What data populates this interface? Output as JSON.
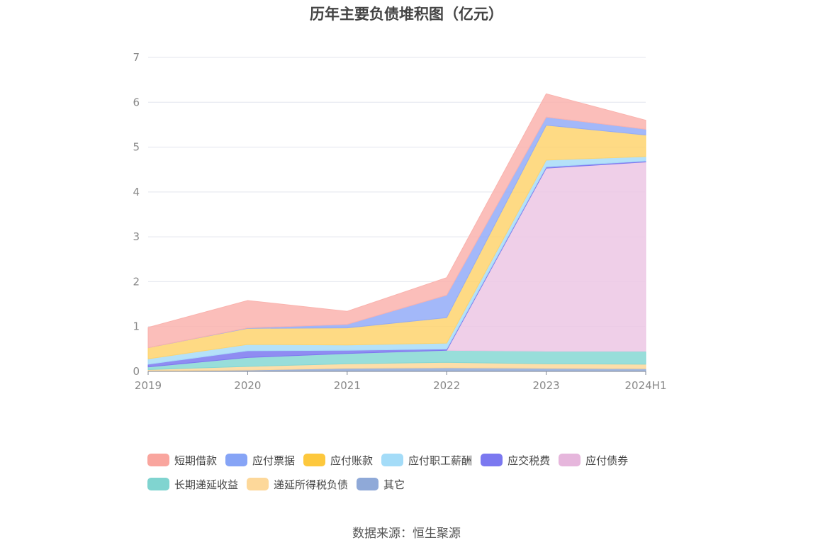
{
  "chart_data": {
    "type": "area",
    "stacked": true,
    "title": "历年主要负债堆积图（亿元）",
    "categories": [
      "2019",
      "2020",
      "2021",
      "2022",
      "2023",
      "2024H1"
    ],
    "ylim": [
      0,
      7
    ],
    "yticks": [
      "0",
      "1",
      "2",
      "3",
      "4",
      "5",
      "6",
      "7"
    ],
    "grid": true,
    "legend_position": "bottom",
    "series": [
      {
        "name": "其它",
        "color": "#8fa9d8",
        "values": [
          0.01,
          0.03,
          0.07,
          0.08,
          0.07,
          0.06
        ]
      },
      {
        "name": "递延所得税负债",
        "color": "#fdd89a",
        "values": [
          0.03,
          0.08,
          0.1,
          0.12,
          0.1,
          0.1
        ]
      },
      {
        "name": "长期递延收益",
        "color": "#86d8d4",
        "values": [
          0.06,
          0.2,
          0.23,
          0.27,
          0.28,
          0.29
        ]
      },
      {
        "name": "应付债券",
        "color": "#ecc7e4",
        "values": [
          0.0,
          0.0,
          0.0,
          0.0,
          4.08,
          4.22
        ]
      },
      {
        "name": "应交税费",
        "color": "#7b78f0",
        "values": [
          0.06,
          0.15,
          0.07,
          0.03,
          0.03,
          0.02
        ]
      },
      {
        "name": "应付职工薪酬",
        "color": "#a7dcf8",
        "values": [
          0.12,
          0.14,
          0.12,
          0.13,
          0.15,
          0.1
        ]
      },
      {
        "name": "应付账款",
        "color": "#fed46e",
        "values": [
          0.25,
          0.36,
          0.38,
          0.57,
          0.78,
          0.48
        ]
      },
      {
        "name": "应付票据",
        "color": "#93acf8",
        "values": [
          0.0,
          0.01,
          0.08,
          0.5,
          0.18,
          0.13
        ]
      },
      {
        "name": "短期借款",
        "color": "#fab3ae",
        "values": [
          0.45,
          0.61,
          0.29,
          0.39,
          0.52,
          0.2
        ]
      }
    ]
  },
  "legend": [
    {
      "label": "短期借款",
      "color": "#f9a59e"
    },
    {
      "label": "应付票据",
      "color": "#86a4f6"
    },
    {
      "label": "应付账款",
      "color": "#fdc83d"
    },
    {
      "label": "应付职工薪酬",
      "color": "#a4dcf8"
    },
    {
      "label": "应交税费",
      "color": "#7b78f0"
    },
    {
      "label": "应付债券",
      "color": "#e6b6dc"
    },
    {
      "label": "长期递延收益",
      "color": "#80d4d0"
    },
    {
      "label": "递延所得税负债",
      "color": "#fdd89a"
    },
    {
      "label": "其它",
      "color": "#8fa9d8"
    }
  ],
  "source": "数据来源：恒生聚源"
}
